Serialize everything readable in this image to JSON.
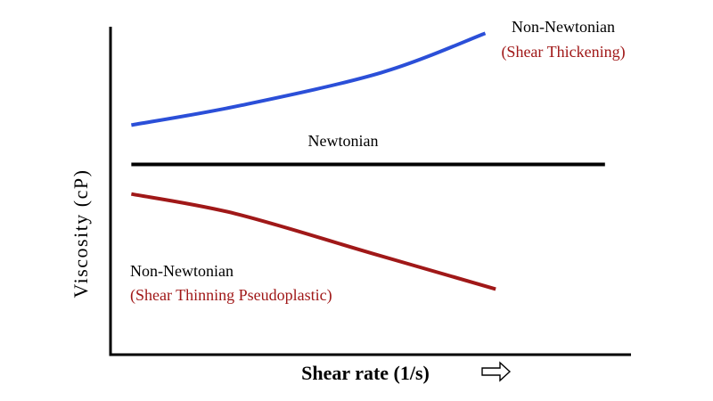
{
  "chart_data": {
    "type": "line",
    "xlabel": "Shear rate (1/s)",
    "ylabel": "Viscosity (cP)",
    "xlim": [
      0,
      100
    ],
    "ylim": [
      0,
      100
    ],
    "grid": false,
    "axis_ticks": false,
    "x_arrow_icon": "right-arrow-outline-icon",
    "series": [
      {
        "name": "Non-Newtonian (Shear Thickening)",
        "label_line1": "Non-Newtonian",
        "label_line2": "(Shear Thickening)",
        "color": "#2b4fd8",
        "label_color": "#000000",
        "label_color2": "#a01818",
        "x": [
          4,
          25,
          52,
          72
        ],
        "y": [
          70,
          76,
          86,
          98
        ]
      },
      {
        "name": "Newtonian",
        "label_line1": "Newtonian",
        "color": "#000000",
        "label_color": "#000000",
        "x": [
          4,
          95
        ],
        "y": [
          58,
          58
        ]
      },
      {
        "name": "Non-Newtonian (Shear Thinning Pseudoplastic)",
        "label_line1": "Non-Newtonian",
        "label_line2": "(Shear Thinning Pseudoplastic)",
        "color": "#a01818",
        "label_color": "#000000",
        "label_color2": "#a01818",
        "x": [
          4,
          24,
          50,
          74
        ],
        "y": [
          49,
          43,
          31,
          20
        ]
      }
    ]
  }
}
